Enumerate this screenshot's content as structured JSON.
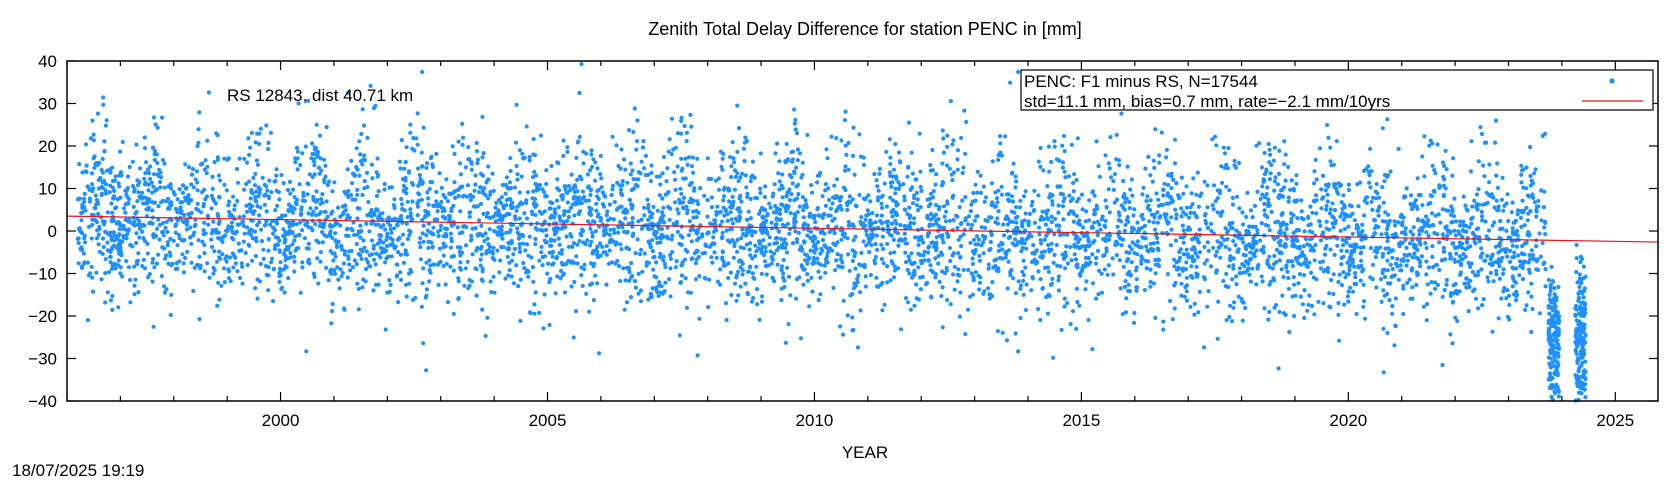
{
  "chart_data": {
    "type": "scatter",
    "title": "Zenith Total Delay Difference for station PENC in [mm]",
    "xlabel": "YEAR",
    "ylabel": "",
    "xlim": [
      1996.0,
      2025.8
    ],
    "ylim": [
      -40,
      40
    ],
    "x_ticks": [
      2000,
      2005,
      2010,
      2015,
      2020,
      2025
    ],
    "y_ticks": [
      -40,
      -30,
      -20,
      -10,
      0,
      10,
      20,
      30,
      40
    ],
    "grid": false,
    "legend_position": "top-right",
    "annotation": "RS 12843, dist 40.71 km",
    "timestamp": "18/07/2025 19:19",
    "series": [
      {
        "name": "PENC: F1 minus RS, N=17544",
        "kind": "points",
        "color": "#1e90ff",
        "n": 17544,
        "observation_periods": [
          {
            "start": 1996.2,
            "end": 2023.7,
            "typical_spread_mm": 11.1
          },
          {
            "start": 2023.75,
            "end": 2023.95,
            "typical_spread_mm": 8.0
          },
          {
            "start": 2024.25,
            "end": 2024.45,
            "typical_spread_mm": 8.0
          }
        ]
      },
      {
        "name": "std=11.1 mm, bias=0.7 mm, rate=−2.1 mm/10yrs",
        "kind": "trend_line",
        "color": "#e8141e",
        "x": [
          1996.0,
          2025.8
        ],
        "y": [
          3.5,
          -2.6
        ]
      }
    ]
  }
}
